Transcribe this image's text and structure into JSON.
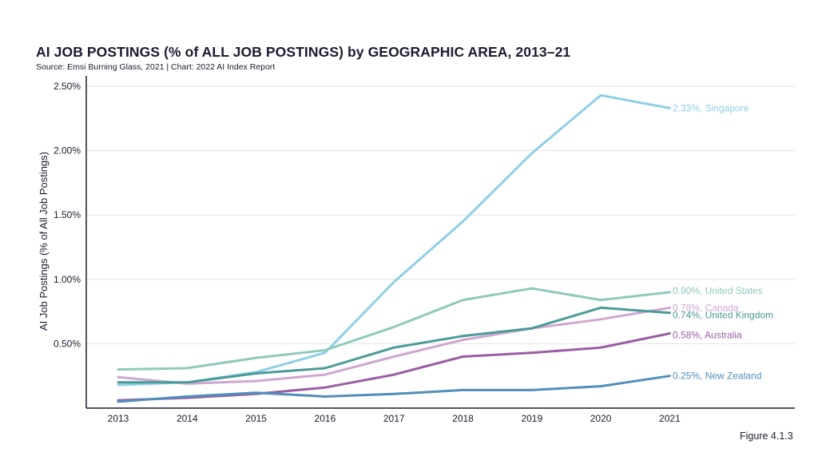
{
  "header": {
    "title": "AI JOB POSTINGS (% of ALL JOB POSTINGS) by GEOGRAPHIC AREA, 2013–21",
    "source": "Source: Emsi Burning Glass, 2021 | Chart: 2022 AI Index Report"
  },
  "figure_label": "Figure 4.1.3",
  "chart_data": {
    "type": "line",
    "x": [
      2013,
      2014,
      2015,
      2016,
      2017,
      2018,
      2019,
      2020,
      2021
    ],
    "ylabel": "AI Job Postings (% of All Job Postings)",
    "ylim": [
      0,
      2.5
    ],
    "yticks": [
      0.5,
      1.0,
      1.5,
      2.0,
      2.5
    ],
    "ytick_labels": [
      "0.50%",
      "1.00%",
      "1.50%",
      "2.00%",
      "2.50%"
    ],
    "grid": true,
    "series": [
      {
        "name": "Singapore",
        "color": "#8ecfe6",
        "values": [
          0.18,
          0.2,
          0.28,
          0.43,
          0.98,
          1.45,
          1.98,
          2.43,
          2.33
        ],
        "end_label": "2.33%, Singapore"
      },
      {
        "name": "United States",
        "color": "#8fc9bc",
        "values": [
          0.3,
          0.31,
          0.39,
          0.45,
          0.63,
          0.84,
          0.93,
          0.84,
          0.9
        ],
        "end_label": "0.90%, United States"
      },
      {
        "name": "Canada",
        "color": "#cfa6cf",
        "values": [
          0.24,
          0.19,
          0.21,
          0.26,
          0.4,
          0.53,
          0.62,
          0.69,
          0.78
        ],
        "end_label": "0.78%, Canada"
      },
      {
        "name": "United Kingdom",
        "color": "#4a9a97",
        "values": [
          0.2,
          0.2,
          0.27,
          0.31,
          0.47,
          0.56,
          0.62,
          0.78,
          0.74
        ],
        "end_label": "0.74%, United Kingdom"
      },
      {
        "name": "Australia",
        "color": "#9a5da3",
        "values": [
          0.06,
          0.08,
          0.11,
          0.16,
          0.26,
          0.4,
          0.43,
          0.47,
          0.58
        ],
        "end_label": "0.58%, Australia"
      },
      {
        "name": "New Zealand",
        "color": "#4f8fba",
        "values": [
          0.05,
          0.09,
          0.12,
          0.09,
          0.11,
          0.14,
          0.14,
          0.17,
          0.25
        ],
        "end_label": "0.25%, New Zealand"
      }
    ]
  }
}
